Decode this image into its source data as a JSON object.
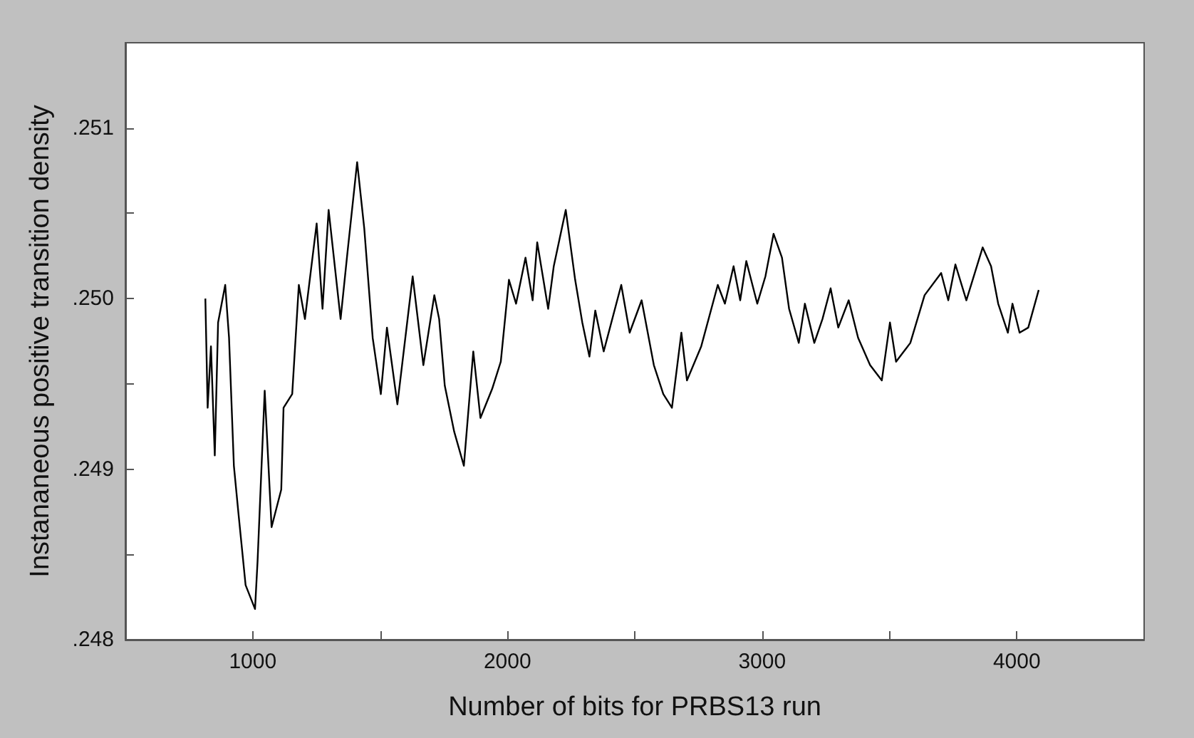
{
  "chart_data": {
    "type": "line",
    "xlabel": "Number of bits for PRBS13 run",
    "ylabel": "Instananeous positive transition density",
    "x": [
      814,
      823,
      836,
      851,
      864,
      892,
      907,
      926,
      944,
      972,
      1009,
      1019,
      1047,
      1074,
      1112,
      1121,
      1155,
      1181,
      1205,
      1251,
      1274,
      1298,
      1345,
      1372,
      1410,
      1438,
      1471,
      1503,
      1527,
      1568,
      1628,
      1670,
      1713,
      1732,
      1754,
      1791,
      1829,
      1866,
      1894,
      1940,
      1974,
      2006,
      2034,
      2071,
      2099,
      2117,
      2160,
      2182,
      2229,
      2266,
      2294,
      2322,
      2345,
      2378,
      2447,
      2480,
      2527,
      2575,
      2612,
      2646,
      2683,
      2705,
      2761,
      2826,
      2854,
      2888,
      2914,
      2938,
      2981,
      3013,
      3045,
      3078,
      3106,
      3144,
      3168,
      3205,
      3237,
      3269,
      3299,
      3340,
      3377,
      3424,
      3470,
      3502,
      3526,
      3582,
      3638,
      3703,
      3731,
      3759,
      3802,
      3866,
      3899,
      3927,
      3965,
      3983,
      4011,
      4045,
      4086
    ],
    "series": [
      {
        "color": "#000000",
        "values": [
          0.25,
          0.24936,
          0.24972,
          0.24908,
          0.24986,
          0.25008,
          0.24977,
          0.24902,
          0.24874,
          0.24832,
          0.24818,
          0.24846,
          0.24946,
          0.24866,
          0.24888,
          0.24936,
          0.24944,
          0.25008,
          0.24988,
          0.25044,
          0.24994,
          0.25052,
          0.24988,
          0.25027,
          0.2508,
          0.25041,
          0.24977,
          0.24944,
          0.24983,
          0.24938,
          0.25013,
          0.24961,
          0.25002,
          0.24988,
          0.24949,
          0.24922,
          0.24902,
          0.24969,
          0.2493,
          0.24947,
          0.24963,
          0.25011,
          0.24997,
          0.25024,
          0.24999,
          0.25033,
          0.24994,
          0.25019,
          0.25052,
          0.25011,
          0.24986,
          0.24966,
          0.24993,
          0.24969,
          0.25008,
          0.2498,
          0.24999,
          0.24961,
          0.24944,
          0.24936,
          0.2498,
          0.24952,
          0.24972,
          0.25008,
          0.24997,
          0.25019,
          0.24999,
          0.25022,
          0.24997,
          0.25013,
          0.25038,
          0.25024,
          0.24994,
          0.24974,
          0.24997,
          0.24974,
          0.24988,
          0.25006,
          0.24983,
          0.24999,
          0.24977,
          0.24961,
          0.24952,
          0.24986,
          0.24963,
          0.24974,
          0.25002,
          0.25015,
          0.24999,
          0.2502,
          0.24999,
          0.2503,
          0.25019,
          0.24997,
          0.2498,
          0.24997,
          0.2498,
          0.24983,
          0.25005
        ]
      }
    ],
    "xlim": [
      500,
      4500
    ],
    "xticks": [
      1000,
      {
        "value": 1500,
        "label": null
      },
      2000,
      {
        "value": 2500,
        "label": null
      },
      3000,
      {
        "value": 3500,
        "label": null
      },
      4000
    ],
    "ylim": [
      0.248,
      0.2515
    ],
    "yticks": [
      {
        "value": 0.248,
        "label": ".248"
      },
      {
        "value": 0.2485,
        "label": null
      },
      {
        "value": 0.249,
        "label": ".249"
      },
      {
        "value": 0.2495,
        "label": null
      },
      {
        "value": 0.25,
        "label": ".250"
      },
      {
        "value": 0.2505,
        "label": null
      },
      {
        "value": 0.251,
        "label": ".251"
      }
    ],
    "marker": "none",
    "line_style": "solid"
  }
}
